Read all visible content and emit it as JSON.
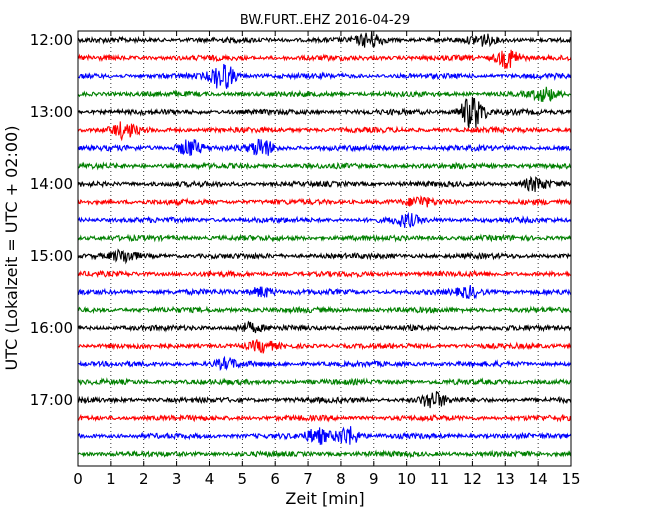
{
  "chart_data": {
    "type": "line",
    "title": "BW.FURT..EHZ 2016-04-29",
    "xlabel": "Zeit  [min]",
    "ylabel": "UTC (Lokalzeit = UTC + 02:00)",
    "xlim": [
      0,
      15
    ],
    "x_ticks": [
      "0",
      "1",
      "2",
      "3",
      "4",
      "5",
      "6",
      "7",
      "8",
      "9",
      "10",
      "11",
      "12",
      "13",
      "14",
      "15"
    ],
    "y_ticks": [
      "12:00",
      "13:00",
      "14:00",
      "15:00",
      "16:00",
      "17:00"
    ],
    "trace_interval_min": 15,
    "first_trace": "12:00",
    "colors": [
      "#000000",
      "#ff0000",
      "#0000ff",
      "#008000"
    ],
    "grid": "vertical dotted lines at each minute",
    "series": [
      {
        "start": "12:00",
        "color": "#000000",
        "events": [
          {
            "t": 8.9,
            "amp": 1.2
          },
          {
            "t": 12.3,
            "amp": 0.8
          }
        ]
      },
      {
        "start": "12:15",
        "color": "#ff0000",
        "events": [
          {
            "t": 13.1,
            "amp": 1.6
          }
        ]
      },
      {
        "start": "12:30",
        "color": "#0000ff",
        "events": [
          {
            "t": 4.4,
            "amp": 2.2
          }
        ]
      },
      {
        "start": "12:45",
        "color": "#008000",
        "events": [
          {
            "t": 14.2,
            "amp": 1.0
          }
        ]
      },
      {
        "start": "13:00",
        "color": "#000000",
        "events": [
          {
            "t": 12.0,
            "amp": 2.8
          }
        ]
      },
      {
        "start": "13:15",
        "color": "#ff0000",
        "events": [
          {
            "t": 1.4,
            "amp": 1.2
          }
        ]
      },
      {
        "start": "13:30",
        "color": "#0000ff",
        "events": [
          {
            "t": 3.4,
            "amp": 1.4
          },
          {
            "t": 5.6,
            "amp": 1.4
          }
        ]
      },
      {
        "start": "13:45",
        "color": "#008000",
        "events": []
      },
      {
        "start": "14:00",
        "color": "#000000",
        "events": [
          {
            "t": 13.9,
            "amp": 1.0
          }
        ]
      },
      {
        "start": "14:15",
        "color": "#ff0000",
        "events": [
          {
            "t": 10.4,
            "amp": 0.7
          }
        ]
      },
      {
        "start": "14:30",
        "color": "#0000ff",
        "events": [
          {
            "t": 10.0,
            "amp": 0.9
          }
        ]
      },
      {
        "start": "14:45",
        "color": "#008000",
        "events": []
      },
      {
        "start": "15:00",
        "color": "#000000",
        "events": [
          {
            "t": 1.4,
            "amp": 0.9
          }
        ]
      },
      {
        "start": "15:15",
        "color": "#ff0000",
        "events": []
      },
      {
        "start": "15:30",
        "color": "#0000ff",
        "events": [
          {
            "t": 5.6,
            "amp": 0.8
          },
          {
            "t": 11.9,
            "amp": 0.8
          }
        ]
      },
      {
        "start": "15:45",
        "color": "#008000",
        "events": []
      },
      {
        "start": "16:00",
        "color": "#000000",
        "events": [
          {
            "t": 5.2,
            "amp": 0.7
          }
        ]
      },
      {
        "start": "16:15",
        "color": "#ff0000",
        "events": [
          {
            "t": 5.6,
            "amp": 0.8
          }
        ]
      },
      {
        "start": "16:30",
        "color": "#0000ff",
        "events": [
          {
            "t": 4.5,
            "amp": 0.7
          }
        ]
      },
      {
        "start": "16:45",
        "color": "#008000",
        "events": []
      },
      {
        "start": "17:00",
        "color": "#000000",
        "events": [
          {
            "t": 10.8,
            "amp": 1.3
          }
        ]
      },
      {
        "start": "17:15",
        "color": "#ff0000",
        "events": []
      },
      {
        "start": "17:30",
        "color": "#0000ff",
        "events": [
          {
            "t": 8.2,
            "amp": 1.6
          },
          {
            "t": 7.3,
            "amp": 1.2
          }
        ]
      },
      {
        "start": "17:45",
        "color": "#008000",
        "events": []
      }
    ]
  }
}
